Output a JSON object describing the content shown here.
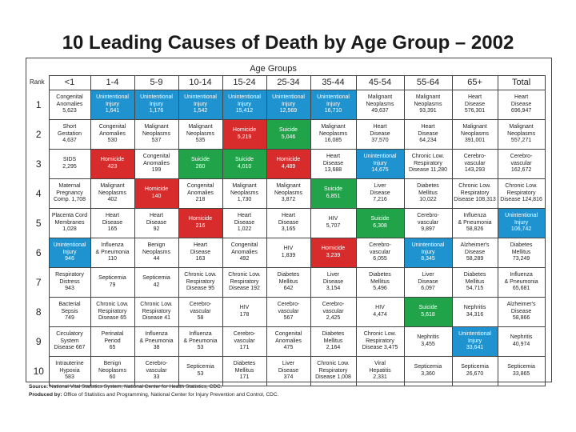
{
  "title": "10 Leading Causes of Death by Age Group – 2002",
  "header": {
    "age_groups_label": "Age Groups",
    "rank_label": "Rank"
  },
  "colors": {
    "injury": "#1f93d0",
    "homicide": "#d82c2c",
    "suicide": "#21a34a"
  },
  "chart_data": {
    "type": "table",
    "title": "10 Leading Causes of Death by Age Group – 2002",
    "columns": [
      "<1",
      "1-4",
      "5-9",
      "10-14",
      "15-24",
      "25-34",
      "35-44",
      "45-54",
      "55-64",
      "65+",
      "Total"
    ],
    "rows": [
      {
        "rank": "1",
        "cells": [
          {
            "lines": [
              "Congenital",
              "Anomalies",
              "5,623"
            ],
            "h": ""
          },
          {
            "lines": [
              "Unintentional",
              "Injury",
              "1,641"
            ],
            "h": "injury"
          },
          {
            "lines": [
              "Unintentional",
              "Injury",
              "1,176"
            ],
            "h": "injury"
          },
          {
            "lines": [
              "Unintentional",
              "Injury",
              "1,542"
            ],
            "h": "injury"
          },
          {
            "lines": [
              "Unintentional",
              "Injury",
              "15,412"
            ],
            "h": "injury"
          },
          {
            "lines": [
              "Unintentional",
              "Injury",
              "12,569"
            ],
            "h": "injury"
          },
          {
            "lines": [
              "Unintentional",
              "Injury",
              "16,710"
            ],
            "h": "injury"
          },
          {
            "lines": [
              "Malignant",
              "Neoplasms",
              "49,637"
            ],
            "h": ""
          },
          {
            "lines": [
              "Malignant",
              "Neoplasms",
              "93,391"
            ],
            "h": ""
          },
          {
            "lines": [
              "Heart",
              "Disease",
              "576,301"
            ],
            "h": ""
          },
          {
            "lines": [
              "Heart",
              "Disease",
              "696,947"
            ],
            "h": ""
          }
        ]
      },
      {
        "rank": "2",
        "cells": [
          {
            "lines": [
              "Short",
              "Gestation",
              "4,637"
            ],
            "h": ""
          },
          {
            "lines": [
              "Congenital",
              "Anomalies",
              "530"
            ],
            "h": ""
          },
          {
            "lines": [
              "Malignant",
              "Neoplasms",
              "537"
            ],
            "h": ""
          },
          {
            "lines": [
              "Malignant",
              "Neoplasms",
              "535"
            ],
            "h": ""
          },
          {
            "lines": [
              "Homicide",
              "5,219"
            ],
            "h": "homicide"
          },
          {
            "lines": [
              "Suicide",
              "5,046"
            ],
            "h": "suicide"
          },
          {
            "lines": [
              "Malignant",
              "Neoplasms",
              "16,085"
            ],
            "h": ""
          },
          {
            "lines": [
              "Heart",
              "Disease",
              "37,570"
            ],
            "h": ""
          },
          {
            "lines": [
              "Heart",
              "Disease",
              "64,234"
            ],
            "h": ""
          },
          {
            "lines": [
              "Malignant",
              "Neoplasms",
              "391,001"
            ],
            "h": ""
          },
          {
            "lines": [
              "Malignant",
              "Neoplasms",
              "557,271"
            ],
            "h": ""
          }
        ]
      },
      {
        "rank": "3",
        "cells": [
          {
            "lines": [
              "SIDS",
              "2,295"
            ],
            "h": ""
          },
          {
            "lines": [
              "Homicide",
              "423"
            ],
            "h": "homicide"
          },
          {
            "lines": [
              "Congenital",
              "Anomalies",
              "199"
            ],
            "h": ""
          },
          {
            "lines": [
              "Suicide",
              "260"
            ],
            "h": "suicide"
          },
          {
            "lines": [
              "Suicide",
              "4,010"
            ],
            "h": "suicide"
          },
          {
            "lines": [
              "Homicide",
              "4,489"
            ],
            "h": "homicide"
          },
          {
            "lines": [
              "Heart",
              "Disease",
              "13,688"
            ],
            "h": ""
          },
          {
            "lines": [
              "Unintentional",
              "Injury",
              "14,675"
            ],
            "h": "injury"
          },
          {
            "lines": [
              "Chronic Low.",
              "Respiratory",
              "Disease 11,280"
            ],
            "h": ""
          },
          {
            "lines": [
              "Cerebro-",
              "vascular",
              "143,293"
            ],
            "h": ""
          },
          {
            "lines": [
              "Cerebro-",
              "vascular",
              "162,672"
            ],
            "h": ""
          }
        ]
      },
      {
        "rank": "4",
        "cells": [
          {
            "lines": [
              "Maternal",
              "Pregnancy",
              "Comp. 1,708"
            ],
            "h": ""
          },
          {
            "lines": [
              "Malignant",
              "Neoplasms",
              "402"
            ],
            "h": ""
          },
          {
            "lines": [
              "Homicide",
              "140"
            ],
            "h": "homicide"
          },
          {
            "lines": [
              "Congenital",
              "Anomalies",
              "218"
            ],
            "h": ""
          },
          {
            "lines": [
              "Malignant",
              "Neoplasms",
              "1,730"
            ],
            "h": ""
          },
          {
            "lines": [
              "Malignant",
              "Neoplasms",
              "3,872"
            ],
            "h": ""
          },
          {
            "lines": [
              "Suicide",
              "6,851"
            ],
            "h": "suicide"
          },
          {
            "lines": [
              "Liver",
              "Disease",
              "7,216"
            ],
            "h": ""
          },
          {
            "lines": [
              "Diabetes",
              "Mellitus",
              "10,022"
            ],
            "h": ""
          },
          {
            "lines": [
              "Chronic Low.",
              "Respiratory",
              "Disease 108,313"
            ],
            "h": ""
          },
          {
            "lines": [
              "Chronic Low.",
              "Respiratory",
              "Disease 124,816"
            ],
            "h": ""
          }
        ]
      },
      {
        "rank": "5",
        "cells": [
          {
            "lines": [
              "Placenta Cord",
              "Membranes",
              "1,028"
            ],
            "h": ""
          },
          {
            "lines": [
              "Heart",
              "Disease",
              "165"
            ],
            "h": ""
          },
          {
            "lines": [
              "Heart",
              "Disease",
              "92"
            ],
            "h": ""
          },
          {
            "lines": [
              "Homicide",
              "216"
            ],
            "h": "homicide"
          },
          {
            "lines": [
              "Heart",
              "Disease",
              "1,022"
            ],
            "h": ""
          },
          {
            "lines": [
              "Heart",
              "Disease",
              "3,165"
            ],
            "h": ""
          },
          {
            "lines": [
              "HIV",
              "5,707"
            ],
            "h": ""
          },
          {
            "lines": [
              "Suicide",
              "6,308"
            ],
            "h": "suicide"
          },
          {
            "lines": [
              "Cerebro-",
              "vascular",
              "9,897"
            ],
            "h": ""
          },
          {
            "lines": [
              "Influenza",
              "& Pneumonia",
              "58,826"
            ],
            "h": ""
          },
          {
            "lines": [
              "Unintentional",
              "Injury",
              "106,742"
            ],
            "h": "injury"
          }
        ]
      },
      {
        "rank": "6",
        "cells": [
          {
            "lines": [
              "Unintentional",
              "Injury",
              "946"
            ],
            "h": "injury"
          },
          {
            "lines": [
              "Influenza",
              "& Pneumonia",
              "110"
            ],
            "h": ""
          },
          {
            "lines": [
              "Benign",
              "Neoplasms",
              "44"
            ],
            "h": ""
          },
          {
            "lines": [
              "Heart",
              "Disease",
              "163"
            ],
            "h": ""
          },
          {
            "lines": [
              "Congenital",
              "Anomalies",
              "492"
            ],
            "h": ""
          },
          {
            "lines": [
              "HIV",
              "1,839"
            ],
            "h": ""
          },
          {
            "lines": [
              "Homicide",
              "3,239"
            ],
            "h": "homicide"
          },
          {
            "lines": [
              "Cerebro-",
              "vascular",
              "6,055"
            ],
            "h": ""
          },
          {
            "lines": [
              "Unintentional",
              "Injury",
              "8,345"
            ],
            "h": "injury"
          },
          {
            "lines": [
              "Alzheimer's",
              "Disease",
              "58,289"
            ],
            "h": ""
          },
          {
            "lines": [
              "Diabetes",
              "Mellitus",
              "73,249"
            ],
            "h": ""
          }
        ]
      },
      {
        "rank": "7",
        "cells": [
          {
            "lines": [
              "Respiratory",
              "Distress",
              "943"
            ],
            "h": ""
          },
          {
            "lines": [
              "Septicemia",
              "79"
            ],
            "h": ""
          },
          {
            "lines": [
              "Septicemia",
              "42"
            ],
            "h": ""
          },
          {
            "lines": [
              "Chronic Low.",
              "Respiratory",
              "Disease 95"
            ],
            "h": ""
          },
          {
            "lines": [
              "Chronic Low.",
              "Respiratory",
              "Disease 192"
            ],
            "h": ""
          },
          {
            "lines": [
              "Diabetes",
              "Mellitus",
              "642"
            ],
            "h": ""
          },
          {
            "lines": [
              "Liver",
              "Disease",
              "3,154"
            ],
            "h": ""
          },
          {
            "lines": [
              "Diabetes",
              "Mellitus",
              "5,496"
            ],
            "h": ""
          },
          {
            "lines": [
              "Liver",
              "Disease",
              "6,097"
            ],
            "h": ""
          },
          {
            "lines": [
              "Diabetes",
              "Mellitus",
              "54,715"
            ],
            "h": ""
          },
          {
            "lines": [
              "Influenza",
              "& Pneumonia",
              "65,681"
            ],
            "h": ""
          }
        ]
      },
      {
        "rank": "8",
        "cells": [
          {
            "lines": [
              "Bacterial",
              "Sepsis",
              "749"
            ],
            "h": ""
          },
          {
            "lines": [
              "Chronic Low.",
              "Respiratory",
              "Disease 65"
            ],
            "h": ""
          },
          {
            "lines": [
              "Chronic Low.",
              "Respiratory",
              "Disease 41"
            ],
            "h": ""
          },
          {
            "lines": [
              "Cerebro-",
              "vascular",
              "58"
            ],
            "h": ""
          },
          {
            "lines": [
              "HIV",
              "178"
            ],
            "h": ""
          },
          {
            "lines": [
              "Cerebro-",
              "vascular",
              "567"
            ],
            "h": ""
          },
          {
            "lines": [
              "Cerebro-",
              "vascular",
              "2,425"
            ],
            "h": ""
          },
          {
            "lines": [
              "HIV",
              "4,474"
            ],
            "h": ""
          },
          {
            "lines": [
              "Suicide",
              "5,618"
            ],
            "h": "suicide"
          },
          {
            "lines": [
              "Nephritis",
              "34,316"
            ],
            "h": ""
          },
          {
            "lines": [
              "Alzheimer's",
              "Disease",
              "58,866"
            ],
            "h": ""
          }
        ]
      },
      {
        "rank": "9",
        "cells": [
          {
            "lines": [
              "Circulatory",
              "System",
              "Disease 667"
            ],
            "h": ""
          },
          {
            "lines": [
              "Perinatal",
              "Period",
              "65"
            ],
            "h": ""
          },
          {
            "lines": [
              "Influenza",
              "& Pneumonia",
              "38"
            ],
            "h": ""
          },
          {
            "lines": [
              "Influenza",
              "& Pneumonia",
              "53"
            ],
            "h": ""
          },
          {
            "lines": [
              "Cerebro-",
              "vascular",
              "171"
            ],
            "h": ""
          },
          {
            "lines": [
              "Congenital",
              "Anomalies",
              "475"
            ],
            "h": ""
          },
          {
            "lines": [
              "Diabetes",
              "Mellitus",
              "2,164"
            ],
            "h": ""
          },
          {
            "lines": [
              "Chronic Low.",
              "Respiratory",
              "Disease 3,475"
            ],
            "h": ""
          },
          {
            "lines": [
              "Nephritis",
              "3,455"
            ],
            "h": ""
          },
          {
            "lines": [
              "Unintentional",
              "Injury",
              "33,641"
            ],
            "h": "injury"
          },
          {
            "lines": [
              "Nephritis",
              "40,974"
            ],
            "h": ""
          }
        ]
      },
      {
        "rank": "10",
        "cells": [
          {
            "lines": [
              "Intrauterine",
              "Hypoxia",
              "583"
            ],
            "h": ""
          },
          {
            "lines": [
              "Benign",
              "Neoplasms",
              "60"
            ],
            "h": ""
          },
          {
            "lines": [
              "Cerebro-",
              "vascular",
              "33"
            ],
            "h": ""
          },
          {
            "lines": [
              "Septicemia",
              "53"
            ],
            "h": ""
          },
          {
            "lines": [
              "Diabetes",
              "Mellitus",
              "171"
            ],
            "h": ""
          },
          {
            "lines": [
              "Liver",
              "Disease",
              "374"
            ],
            "h": ""
          },
          {
            "lines": [
              "Chronic Low.",
              "Respiratory",
              "Disease 1,008"
            ],
            "h": ""
          },
          {
            "lines": [
              "Viral",
              "Hepatitis",
              "2,331"
            ],
            "h": ""
          },
          {
            "lines": [
              "Septicemia",
              "3,360"
            ],
            "h": ""
          },
          {
            "lines": [
              "Septicemia",
              "26,670"
            ],
            "h": ""
          },
          {
            "lines": [
              "Septicemia",
              "33,865"
            ],
            "h": ""
          }
        ]
      }
    ]
  },
  "footer": {
    "source_label": "Source:",
    "source_text": " National Vital Statistics System, National Center for Health Statistics, CDC.",
    "produced_label": "Produced by:",
    "produced_text": " Office of Statistics and Programming, National Center for Injury Prevention and Control, CDC."
  }
}
